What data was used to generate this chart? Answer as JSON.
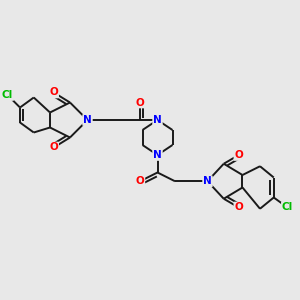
{
  "background_color": "#e8e8e8",
  "N_color": "#0000ff",
  "O_color": "#ff0000",
  "Cl_color": "#00bb00",
  "bond_color": "#1a1a1a",
  "lw": 1.4,
  "fs": 7.5,
  "xlim": [
    0,
    12
  ],
  "ylim": [
    0,
    12
  ]
}
